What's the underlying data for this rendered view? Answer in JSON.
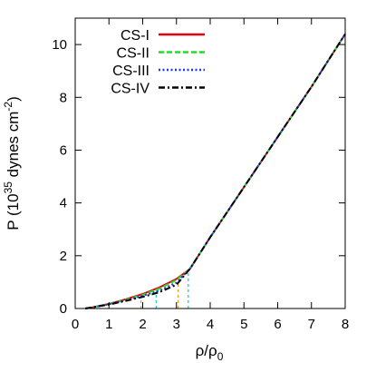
{
  "chart_data": {
    "type": "line",
    "xlabel": "ρ/ρ",
    "xlabel_sub": "0",
    "ylabel": "P (10",
    "ylabel_sup": "35",
    "ylabel_mid": " dynes cm",
    "ylabel_sup2": "-2",
    "ylabel_end": ")",
    "xlim": [
      0,
      8
    ],
    "ylim": [
      0,
      11
    ],
    "xticks": [
      0,
      1,
      2,
      3,
      4,
      5,
      6,
      7,
      8
    ],
    "yticks": [
      0,
      2,
      4,
      6,
      8,
      10
    ],
    "grid": false,
    "legend_position": "top-left",
    "series": [
      {
        "name": "CS-I",
        "color": "#e8000b",
        "dash": "solid",
        "x": [
          0.3,
          0.5,
          1.0,
          1.5,
          2.0,
          2.5,
          3.0,
          3.4,
          4.0,
          5.0,
          6.0,
          7.0,
          8.0
        ],
        "y": [
          0.0,
          0.04,
          0.18,
          0.35,
          0.55,
          0.8,
          1.12,
          1.5,
          2.7,
          4.6,
          6.5,
          8.4,
          10.4
        ]
      },
      {
        "name": "CS-II",
        "color": "#22dd22",
        "dash": "dashed",
        "x": [
          0.3,
          0.5,
          1.0,
          1.5,
          2.0,
          2.5,
          3.0,
          3.4,
          4.0,
          5.0,
          6.0,
          7.0,
          8.0
        ],
        "y": [
          0.0,
          0.04,
          0.17,
          0.33,
          0.52,
          0.76,
          1.08,
          1.5,
          2.7,
          4.6,
          6.5,
          8.4,
          10.4
        ]
      },
      {
        "name": "CS-III",
        "color": "#1f3be6",
        "dash": "dotted",
        "x": [
          0.3,
          0.5,
          1.0,
          1.5,
          2.0,
          2.5,
          3.0,
          3.4,
          4.0,
          5.0,
          6.0,
          7.0,
          8.0
        ],
        "y": [
          0.0,
          0.04,
          0.16,
          0.31,
          0.48,
          0.68,
          0.98,
          1.5,
          2.7,
          4.6,
          6.5,
          8.4,
          10.4
        ]
      },
      {
        "name": "CS-IV",
        "color": "#000000",
        "dash": "dashdot",
        "x": [
          0.3,
          0.5,
          1.0,
          1.5,
          2.0,
          2.5,
          3.0,
          3.4,
          4.0,
          5.0,
          6.0,
          7.0,
          8.0
        ],
        "y": [
          0.0,
          0.04,
          0.15,
          0.29,
          0.44,
          0.62,
          0.9,
          1.5,
          2.7,
          4.6,
          6.5,
          8.4,
          10.4
        ]
      }
    ],
    "vertical_markers": [
      {
        "x": 1.95,
        "y": 0.5,
        "color": "#f2a020"
      },
      {
        "x": 2.4,
        "y": 0.68,
        "color": "#22cccc"
      },
      {
        "x": 3.05,
        "y": 0.98,
        "color": "#f2a020"
      },
      {
        "x": 3.35,
        "y": 1.4,
        "color": "#22cccc"
      }
    ]
  }
}
